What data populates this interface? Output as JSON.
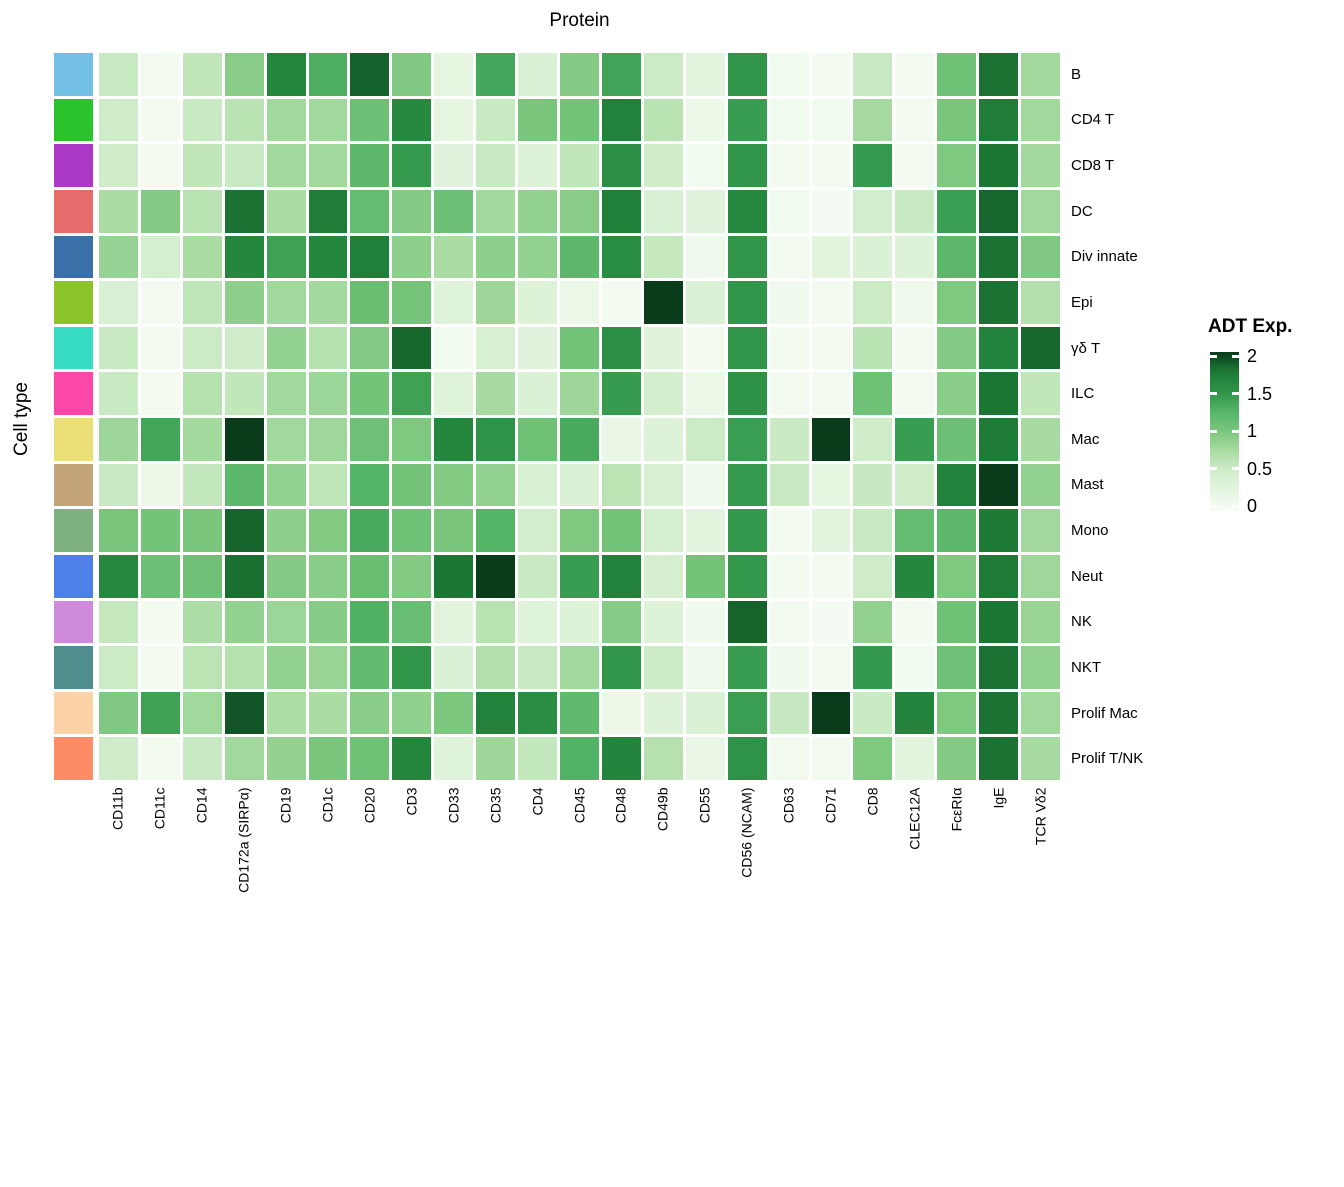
{
  "chart_data": {
    "type": "heatmap",
    "x_axis_title": "Protein",
    "y_axis_title": "Cell type",
    "columns": [
      "CD11b",
      "CD11c",
      "CD14",
      "CD172a (SIRPα)",
      "CD19",
      "CD1c",
      "CD20",
      "CD3",
      "CD33",
      "CD35",
      "CD4",
      "CD45",
      "CD48",
      "CD49b",
      "CD55",
      "CD56 (NCAM)",
      "CD63",
      "CD71",
      "CD8",
      "CLEC12A",
      "FcεRIα",
      "IgE",
      "TCR Vδ2"
    ],
    "rows": [
      "B",
      "CD4 T",
      "CD8 T",
      "DC",
      "Div innate",
      "Epi",
      "γδ T",
      "ILC",
      "Mac",
      "Mast",
      "Mono",
      "Neut",
      "NK",
      "NKT",
      "Prolif Mac",
      "Prolif T/NK"
    ],
    "row_strip_colors": [
      "#74BFE4",
      "#2BC32B",
      "#AC38C8",
      "#E66C6C",
      "#3A6FA8",
      "#8AC32A",
      "#38DCC2",
      "#FB48A8",
      "#EBE077",
      "#C3A477",
      "#7DB180",
      "#4F80E8",
      "#D08ADC",
      "#4F8E8C",
      "#FCD3A6",
      "#FB8C66"
    ],
    "values": [
      [
        0.55,
        0.07,
        0.6,
        0.93,
        1.63,
        1.3,
        1.85,
        0.97,
        0.25,
        1.35,
        0.37,
        0.95,
        1.38,
        0.53,
        0.28,
        1.48,
        0.08,
        0.06,
        0.55,
        0.06,
        1.08,
        1.78,
        0.78
      ],
      [
        0.52,
        0.05,
        0.55,
        0.65,
        0.8,
        0.8,
        1.1,
        1.6,
        0.25,
        0.55,
        1.0,
        1.05,
        1.68,
        0.65,
        0.15,
        1.43,
        0.08,
        0.08,
        0.77,
        0.06,
        1.02,
        1.72,
        0.8
      ],
      [
        0.5,
        0.05,
        0.6,
        0.55,
        0.8,
        0.8,
        1.2,
        1.45,
        0.3,
        0.55,
        0.35,
        0.6,
        1.55,
        0.5,
        0.08,
        1.48,
        0.07,
        0.06,
        1.45,
        0.05,
        0.98,
        1.77,
        0.78
      ],
      [
        0.75,
        0.95,
        0.65,
        1.78,
        0.75,
        1.72,
        1.15,
        0.95,
        1.1,
        0.78,
        0.88,
        0.93,
        1.7,
        0.4,
        0.3,
        1.62,
        0.08,
        0.04,
        0.48,
        0.55,
        1.42,
        1.83,
        0.79
      ],
      [
        0.85,
        0.45,
        0.75,
        1.63,
        1.4,
        1.63,
        1.7,
        0.9,
        0.75,
        0.9,
        0.88,
        1.2,
        1.57,
        0.57,
        0.1,
        1.48,
        0.07,
        0.28,
        0.37,
        0.34,
        1.2,
        1.78,
        0.97
      ],
      [
        0.4,
        0.07,
        0.62,
        0.9,
        0.8,
        0.78,
        1.12,
        1.03,
        0.32,
        0.82,
        0.35,
        0.17,
        0.05,
        2.0,
        0.38,
        1.48,
        0.1,
        0.07,
        0.53,
        0.12,
        0.98,
        1.78,
        0.7
      ],
      [
        0.55,
        0.06,
        0.53,
        0.52,
        0.88,
        0.68,
        0.95,
        1.82,
        0.08,
        0.42,
        0.3,
        1.05,
        1.55,
        0.3,
        0.07,
        1.48,
        0.06,
        0.05,
        0.65,
        0.07,
        0.95,
        1.65,
        1.82
      ],
      [
        0.55,
        0.06,
        0.68,
        0.6,
        0.8,
        0.83,
        1.05,
        1.4,
        0.32,
        0.77,
        0.38,
        0.82,
        1.44,
        0.48,
        0.17,
        1.52,
        0.06,
        0.06,
        1.08,
        0.07,
        0.92,
        1.77,
        0.6
      ],
      [
        0.82,
        1.37,
        0.78,
        2.0,
        0.79,
        0.81,
        1.07,
        0.98,
        1.63,
        1.5,
        1.08,
        1.33,
        0.18,
        0.33,
        0.53,
        1.42,
        0.54,
        2.0,
        0.5,
        1.43,
        1.1,
        1.73,
        0.76
      ],
      [
        0.55,
        0.17,
        0.58,
        1.2,
        0.87,
        0.62,
        1.25,
        1.04,
        0.96,
        0.88,
        0.42,
        0.38,
        0.64,
        0.42,
        0.1,
        1.45,
        0.55,
        0.25,
        0.56,
        0.5,
        1.68,
        2.0,
        0.88
      ],
      [
        1.02,
        1.05,
        1.0,
        1.84,
        0.9,
        0.96,
        1.33,
        1.08,
        1.02,
        1.25,
        0.49,
        0.98,
        1.05,
        0.45,
        0.28,
        1.46,
        0.06,
        0.27,
        0.55,
        1.15,
        1.2,
        1.75,
        0.79
      ],
      [
        1.62,
        1.1,
        1.07,
        1.79,
        0.95,
        0.92,
        1.12,
        0.96,
        1.76,
        2.0,
        0.55,
        1.43,
        1.68,
        0.44,
        1.04,
        1.47,
        0.05,
        0.06,
        0.52,
        1.63,
        0.98,
        1.74,
        0.81
      ],
      [
        0.57,
        0.06,
        0.73,
        0.88,
        0.83,
        0.94,
        1.28,
        1.13,
        0.27,
        0.66,
        0.32,
        0.35,
        0.94,
        0.35,
        0.11,
        1.84,
        0.06,
        0.04,
        0.87,
        0.06,
        1.08,
        1.77,
        0.84
      ],
      [
        0.53,
        0.06,
        0.64,
        0.68,
        0.88,
        0.84,
        1.16,
        1.48,
        0.37,
        0.7,
        0.55,
        0.8,
        1.48,
        0.53,
        0.12,
        1.43,
        0.1,
        0.07,
        1.46,
        0.08,
        1.07,
        1.78,
        0.87
      ],
      [
        0.97,
        1.4,
        0.8,
        1.9,
        0.74,
        0.75,
        0.92,
        0.89,
        0.99,
        1.67,
        1.56,
        1.18,
        0.14,
        0.34,
        0.37,
        1.42,
        0.56,
        2.0,
        0.54,
        1.65,
        0.98,
        1.78,
        0.8
      ],
      [
        0.52,
        0.05,
        0.55,
        0.79,
        0.86,
        1.0,
        1.08,
        1.64,
        0.32,
        0.82,
        0.58,
        1.27,
        1.65,
        0.67,
        0.18,
        1.5,
        0.07,
        0.07,
        0.98,
        0.28,
        0.95,
        1.78,
        0.77
      ]
    ],
    "color_scale": {
      "min": 0,
      "max": 2,
      "anchors": [
        [
          0.0,
          "#F7FCF5"
        ],
        [
          0.25,
          "#E5F5E0"
        ],
        [
          0.5,
          "#D0EDCA"
        ],
        [
          0.75,
          "#AADCA3"
        ],
        [
          1.0,
          "#7BC67D"
        ],
        [
          1.25,
          "#55B567"
        ],
        [
          1.5,
          "#2E9348"
        ],
        [
          1.75,
          "#1D7A35"
        ],
        [
          2.0,
          "#0A3B1B"
        ]
      ]
    },
    "legend": {
      "title": "ADT Exp.",
      "tick_values": [
        2,
        1.5,
        1,
        0.5,
        0
      ],
      "tick_labels": [
        "2",
        "1.5",
        "1",
        "0.5",
        "0"
      ],
      "position": "right"
    },
    "layout_hints": {
      "grid": false,
      "x_labels_rotated_90": true,
      "row_color_strip_left": true
    }
  }
}
